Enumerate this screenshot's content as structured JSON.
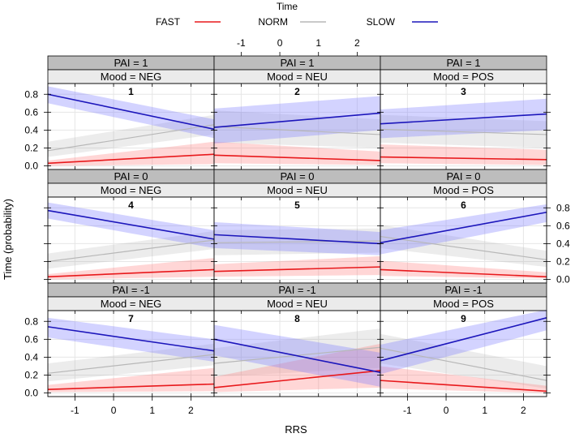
{
  "chart_data": {
    "type": "line",
    "title": "Time",
    "xlabel": "RRS",
    "ylabel": "Time (probability)",
    "xlim": [
      -1.7,
      2.6
    ],
    "ylim": [
      -0.04,
      0.92
    ],
    "x_ticks": [
      "-1",
      "0",
      "1",
      "2"
    ],
    "y_ticks": [
      "0.0",
      "0.2",
      "0.4",
      "0.6",
      "0.8"
    ],
    "legend": [
      {
        "name": "FAST",
        "color": "#e8191c"
      },
      {
        "name": "NORM",
        "color": "#b7b7b7"
      },
      {
        "name": "SLOW",
        "color": "#1c16bb"
      }
    ],
    "panels": [
      {
        "number": "1",
        "strip_top": "PAI = 1",
        "strip_mood": "Mood = NEG",
        "series": {
          "SLOW": {
            "start": 0.8,
            "end": 0.41,
            "lo_start": 0.7,
            "hi_start": 0.89,
            "lo_end": 0.31,
            "hi_end": 0.52
          },
          "NORM": {
            "start": 0.17,
            "end": 0.46,
            "lo_start": 0.1,
            "hi_start": 0.27,
            "lo_end": 0.35,
            "hi_end": 0.57
          },
          "FAST": {
            "start": 0.03,
            "end": 0.13,
            "lo_start": 0.0,
            "hi_start": 0.06,
            "lo_end": 0.02,
            "hi_end": 0.27
          }
        }
      },
      {
        "number": "2",
        "strip_top": "PAI = 1",
        "strip_mood": "Mood = NEU",
        "series": {
          "SLOW": {
            "start": 0.43,
            "end": 0.59,
            "lo_start": 0.25,
            "hi_start": 0.64,
            "lo_end": 0.4,
            "hi_end": 0.78
          },
          "NORM": {
            "start": 0.44,
            "end": 0.35,
            "lo_start": 0.26,
            "hi_start": 0.62,
            "lo_end": 0.2,
            "hi_end": 0.52
          },
          "FAST": {
            "start": 0.12,
            "end": 0.06,
            "lo_start": 0.03,
            "hi_start": 0.27,
            "lo_end": 0.01,
            "hi_end": 0.16
          }
        }
      },
      {
        "number": "3",
        "strip_top": "PAI = 1",
        "strip_mood": "Mood = POS",
        "series": {
          "SLOW": {
            "start": 0.47,
            "end": 0.58,
            "lo_start": 0.31,
            "hi_start": 0.63,
            "lo_end": 0.4,
            "hi_end": 0.75
          },
          "NORM": {
            "start": 0.41,
            "end": 0.35,
            "lo_start": 0.26,
            "hi_start": 0.57,
            "lo_end": 0.2,
            "hi_end": 0.5
          },
          "FAST": {
            "start": 0.1,
            "end": 0.07,
            "lo_start": 0.03,
            "hi_start": 0.24,
            "lo_end": 0.01,
            "hi_end": 0.18
          }
        }
      },
      {
        "number": "4",
        "strip_top": "PAI = 0",
        "strip_mood": "Mood = NEG",
        "series": {
          "SLOW": {
            "start": 0.77,
            "end": 0.45,
            "lo_start": 0.68,
            "hi_start": 0.86,
            "lo_end": 0.35,
            "hi_end": 0.55
          },
          "NORM": {
            "start": 0.2,
            "end": 0.44,
            "lo_start": 0.12,
            "hi_start": 0.29,
            "lo_end": 0.34,
            "hi_end": 0.54
          },
          "FAST": {
            "start": 0.03,
            "end": 0.11,
            "lo_start": 0.0,
            "hi_start": 0.06,
            "lo_end": 0.03,
            "hi_end": 0.24
          }
        }
      },
      {
        "number": "5",
        "strip_top": "PAI = 0",
        "strip_mood": "Mood = NEU",
        "series": {
          "SLOW": {
            "start": 0.5,
            "end": 0.4,
            "lo_start": 0.35,
            "hi_start": 0.64,
            "lo_end": 0.27,
            "hi_end": 0.53
          },
          "NORM": {
            "start": 0.41,
            "end": 0.43,
            "lo_start": 0.27,
            "hi_start": 0.55,
            "lo_end": 0.3,
            "hi_end": 0.57
          },
          "FAST": {
            "start": 0.09,
            "end": 0.14,
            "lo_start": 0.03,
            "hi_start": 0.17,
            "lo_end": 0.05,
            "hi_end": 0.26
          }
        }
      },
      {
        "number": "6",
        "strip_top": "PAI = 0",
        "strip_mood": "Mood = POS",
        "series": {
          "SLOW": {
            "start": 0.41,
            "end": 0.75,
            "lo_start": 0.28,
            "hi_start": 0.55,
            "lo_end": 0.64,
            "hi_end": 0.84
          },
          "NORM": {
            "start": 0.48,
            "end": 0.22,
            "lo_start": 0.35,
            "hi_start": 0.61,
            "lo_end": 0.14,
            "hi_end": 0.32
          },
          "FAST": {
            "start": 0.11,
            "end": 0.03,
            "lo_start": 0.04,
            "hi_start": 0.21,
            "lo_end": 0.01,
            "hi_end": 0.08
          }
        }
      },
      {
        "number": "7",
        "strip_top": "PAI = -1",
        "strip_mood": "Mood = NEG",
        "series": {
          "SLOW": {
            "start": 0.74,
            "end": 0.47,
            "lo_start": 0.62,
            "hi_start": 0.84,
            "lo_end": 0.35,
            "hi_end": 0.6
          },
          "NORM": {
            "start": 0.22,
            "end": 0.43,
            "lo_start": 0.13,
            "hi_start": 0.33,
            "lo_end": 0.31,
            "hi_end": 0.55
          },
          "FAST": {
            "start": 0.04,
            "end": 0.1,
            "lo_start": 0.01,
            "hi_start": 0.09,
            "lo_end": 0.02,
            "hi_end": 0.28
          }
        }
      },
      {
        "number": "8",
        "strip_top": "PAI = -1",
        "strip_mood": "Mood = NEU",
        "series": {
          "SLOW": {
            "start": 0.6,
            "end": 0.23,
            "lo_start": 0.42,
            "hi_start": 0.76,
            "lo_end": 0.07,
            "hi_end": 0.45
          },
          "NORM": {
            "start": 0.33,
            "end": 0.51,
            "lo_start": 0.18,
            "hi_start": 0.5,
            "lo_end": 0.28,
            "hi_end": 0.72
          },
          "FAST": {
            "start": 0.06,
            "end": 0.25,
            "lo_start": 0.01,
            "hi_start": 0.18,
            "lo_end": 0.06,
            "hi_end": 0.55
          }
        }
      },
      {
        "number": "9",
        "strip_top": "PAI = -1",
        "strip_mood": "Mood = POS",
        "series": {
          "SLOW": {
            "start": 0.36,
            "end": 0.84,
            "lo_start": 0.21,
            "hi_start": 0.54,
            "lo_end": 0.7,
            "hi_end": 0.93
          },
          "NORM": {
            "start": 0.5,
            "end": 0.14,
            "lo_start": 0.33,
            "hi_start": 0.66,
            "lo_end": 0.05,
            "hi_end": 0.3
          },
          "FAST": {
            "start": 0.14,
            "end": 0.02,
            "lo_start": 0.05,
            "hi_start": 0.3,
            "lo_end": 0.0,
            "hi_end": 0.08
          }
        }
      }
    ]
  }
}
